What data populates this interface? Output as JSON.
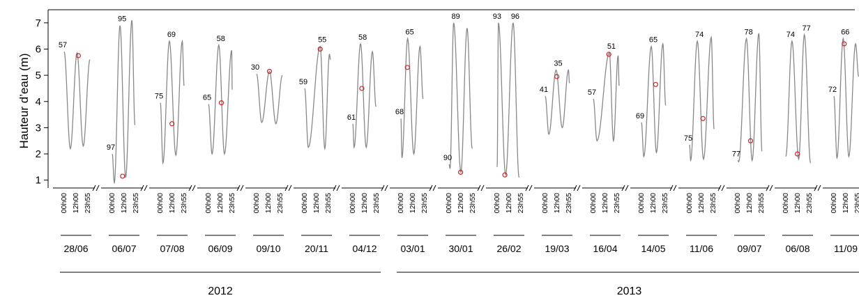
{
  "chart_data": {
    "type": "line",
    "ylabel": "Hauteur d’eau (m)",
    "ylim": [
      0.7,
      7.5
    ],
    "yticks": [
      1,
      2,
      3,
      4,
      5,
      6,
      7
    ],
    "hour_labels": [
      "00h00",
      "12h00",
      "23h55"
    ],
    "line_color": "#888888",
    "marker_color": "#cc2222",
    "panels": [
      {
        "date": "28/06",
        "coef_labels": [
          "57"
        ],
        "marker_t": 0.55,
        "marker_y": 5.75,
        "points": [
          [
            0,
            5.9
          ],
          [
            0.24,
            2.2
          ],
          [
            0.5,
            5.85
          ],
          [
            0.74,
            2.3
          ],
          [
            1,
            5.6
          ]
        ]
      },
      {
        "date": "06/07",
        "coef_labels": [
          "97",
          "95"
        ],
        "marker_t": 0.4,
        "marker_y": 1.15,
        "points": [
          [
            0,
            2.0
          ],
          [
            0.08,
            0.9
          ],
          [
            0.3,
            6.9
          ],
          [
            0.52,
            1.1
          ],
          [
            0.76,
            7.1
          ],
          [
            0.88,
            3.1
          ]
        ]
      },
      {
        "date": "07/08",
        "coef_labels": [
          "75",
          "69"
        ],
        "marker_t": 0.45,
        "marker_y": 3.15,
        "points": [
          [
            0,
            3.95
          ],
          [
            0.1,
            1.65
          ],
          [
            0.35,
            6.3
          ],
          [
            0.6,
            1.95
          ],
          [
            0.85,
            6.3
          ],
          [
            0.92,
            4.6
          ]
        ]
      },
      {
        "date": "06/09",
        "coef_labels": [
          "65",
          "58"
        ],
        "marker_t": 0.5,
        "marker_y": 3.95,
        "points": [
          [
            0,
            3.9
          ],
          [
            0.14,
            2.0
          ],
          [
            0.4,
            6.15
          ],
          [
            0.62,
            2.0
          ],
          [
            0.9,
            5.95
          ],
          [
            0.92,
            4.45
          ]
        ]
      },
      {
        "date": "09/10",
        "coef_labels": [
          "30"
        ],
        "marker_t": 0.5,
        "marker_y": 5.15,
        "points": [
          [
            0,
            5.05
          ],
          [
            0.2,
            3.2
          ],
          [
            0.5,
            5.15
          ],
          [
            0.75,
            3.15
          ],
          [
            1,
            5.0
          ]
        ]
      },
      {
        "date": "20/11",
        "coef_labels": [
          "59",
          "55"
        ],
        "marker_t": 0.6,
        "marker_y": 6.0,
        "points": [
          [
            0,
            4.5
          ],
          [
            0.14,
            2.25
          ],
          [
            0.6,
            6.1
          ],
          [
            0.78,
            2.2
          ],
          [
            0.96,
            5.8
          ],
          [
            1,
            5.6
          ]
        ]
      },
      {
        "date": "04/12",
        "coef_labels": [
          "61",
          "58"
        ],
        "marker_t": 0.35,
        "marker_y": 4.5,
        "points": [
          [
            0,
            3.15
          ],
          [
            0.05,
            2.25
          ],
          [
            0.3,
            6.2
          ],
          [
            0.52,
            2.25
          ],
          [
            0.76,
            5.9
          ],
          [
            0.9,
            3.8
          ]
        ]
      },
      {
        "date": "03/01",
        "coef_labels": [
          "68",
          "65"
        ],
        "marker_t": 0.25,
        "marker_y": 5.3,
        "points": [
          [
            0,
            3.35
          ],
          [
            0.04,
            1.85
          ],
          [
            0.26,
            6.4
          ],
          [
            0.5,
            2.0
          ],
          [
            0.74,
            6.1
          ],
          [
            0.86,
            4.1
          ]
        ]
      },
      {
        "date": "30/01",
        "coef_labels": [
          "90",
          "89"
        ],
        "marker_t": 0.45,
        "marker_y": 1.3,
        "points": [
          [
            0,
            1.6
          ],
          [
            0.04,
            1.45
          ],
          [
            0.18,
            7.0
          ],
          [
            0.46,
            1.3
          ],
          [
            0.7,
            6.8
          ],
          [
            0.9,
            2.2
          ]
        ]
      },
      {
        "date": "26/02",
        "coef_labels": [
          "93",
          "96"
        ],
        "marker_t": 0.3,
        "marker_y": 1.2,
        "points": [
          [
            0,
            1.5
          ],
          [
            0.05,
            7.0
          ],
          [
            0.33,
            1.2
          ],
          [
            0.62,
            7.0
          ],
          [
            0.85,
            1.1
          ]
        ]
      },
      {
        "date": "19/03",
        "coef_labels": [
          "41",
          "35"
        ],
        "marker_t": 0.45,
        "marker_y": 4.95,
        "points": [
          [
            0,
            4.2
          ],
          [
            0.14,
            2.75
          ],
          [
            0.42,
            5.2
          ],
          [
            0.66,
            3.0
          ],
          [
            0.9,
            5.2
          ],
          [
            0.94,
            4.7
          ]
        ]
      },
      {
        "date": "16/04",
        "coef_labels": [
          "57",
          "51"
        ],
        "marker_t": 0.6,
        "marker_y": 5.8,
        "points": [
          [
            0,
            4.1
          ],
          [
            0.14,
            2.5
          ],
          [
            0.62,
            5.85
          ],
          [
            0.78,
            2.5
          ],
          [
            0.96,
            5.75
          ],
          [
            1,
            4.6
          ]
        ]
      },
      {
        "date": "14/05",
        "coef_labels": [
          "69",
          "65"
        ],
        "marker_t": 0.55,
        "marker_y": 4.65,
        "points": [
          [
            0,
            3.2
          ],
          [
            0.09,
            1.9
          ],
          [
            0.38,
            6.1
          ],
          [
            0.58,
            2.05
          ],
          [
            0.83,
            6.2
          ],
          [
            0.94,
            3.85
          ]
        ]
      },
      {
        "date": "11/06",
        "coef_labels": [
          "75",
          "74"
        ],
        "marker_t": 0.52,
        "marker_y": 3.35,
        "points": [
          [
            0,
            2.35
          ],
          [
            0.04,
            1.75
          ],
          [
            0.3,
            6.3
          ],
          [
            0.54,
            1.8
          ],
          [
            0.84,
            6.45
          ],
          [
            0.95,
            2.95
          ]
        ]
      },
      {
        "date": "09/07",
        "coef_labels": [
          "77",
          "78"
        ],
        "marker_t": 0.5,
        "marker_y": 2.5,
        "points": [
          [
            0,
            1.75
          ],
          [
            0.04,
            1.7
          ],
          [
            0.34,
            6.4
          ],
          [
            0.56,
            1.75
          ],
          [
            0.82,
            6.6
          ],
          [
            0.94,
            2.1
          ]
        ]
      },
      {
        "date": "06/08",
        "coef_labels": [
          "74",
          "77"
        ],
        "marker_t": 0.45,
        "marker_y": 2.0,
        "points": [
          [
            0,
            1.9
          ],
          [
            0.24,
            6.3
          ],
          [
            0.5,
            1.8
          ],
          [
            0.72,
            6.55
          ],
          [
            0.96,
            1.65
          ]
        ]
      },
      {
        "date": "11/09",
        "coef_labels": [
          "72",
          "66"
        ],
        "marker_t": 0.4,
        "marker_y": 6.2,
        "points": [
          [
            0,
            4.2
          ],
          [
            0.12,
            1.85
          ],
          [
            0.36,
            6.4
          ],
          [
            0.58,
            1.9
          ],
          [
            0.84,
            6.2
          ],
          [
            0.96,
            4.95
          ]
        ]
      }
    ],
    "years": [
      {
        "label": "2012",
        "from": 0,
        "to": 6
      },
      {
        "label": "2013",
        "from": 7,
        "to": 16
      }
    ]
  }
}
